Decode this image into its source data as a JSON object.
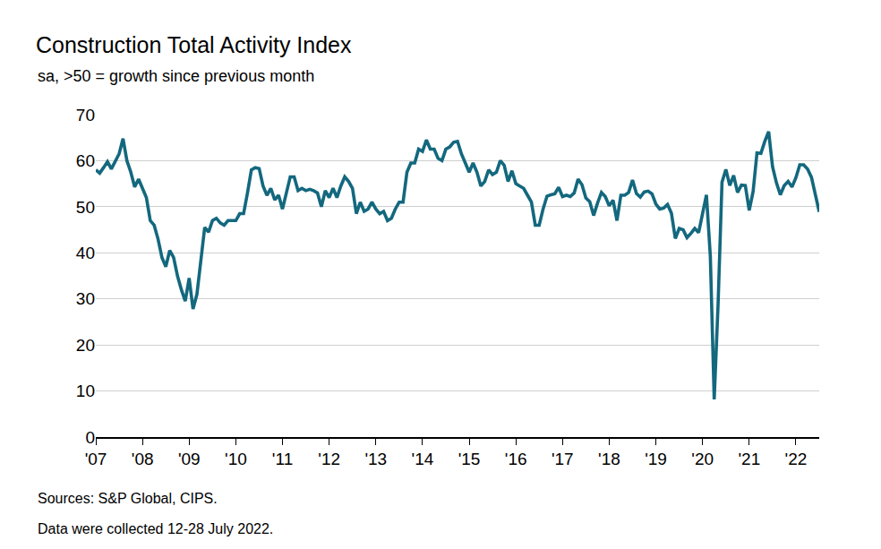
{
  "chart_data": {
    "type": "line",
    "title": "Construction Total Activity Index",
    "subtitle": "sa, >50 = growth since previous month",
    "annotations": [
      "Sources: S&P Global, CIPS.",
      "Data were collected 12-28 July 2022."
    ],
    "color": "#13687e",
    "grid": true,
    "ylim": [
      0,
      70
    ],
    "yticks": [
      0,
      10,
      20,
      30,
      40,
      50,
      60,
      70
    ],
    "categories": [
      "'07",
      null,
      null,
      null,
      null,
      null,
      null,
      null,
      null,
      null,
      null,
      null,
      "'08",
      null,
      null,
      null,
      null,
      null,
      null,
      null,
      null,
      null,
      null,
      null,
      "'09",
      null,
      null,
      null,
      null,
      null,
      null,
      null,
      null,
      null,
      null,
      null,
      "'10",
      null,
      null,
      null,
      null,
      null,
      null,
      null,
      null,
      null,
      null,
      null,
      "'11",
      null,
      null,
      null,
      null,
      null,
      null,
      null,
      null,
      null,
      null,
      null,
      "'12",
      null,
      null,
      null,
      null,
      null,
      null,
      null,
      null,
      null,
      null,
      null,
      "'13",
      null,
      null,
      null,
      null,
      null,
      null,
      null,
      null,
      null,
      null,
      null,
      "'14",
      null,
      null,
      null,
      null,
      null,
      null,
      null,
      null,
      null,
      null,
      null,
      "'15",
      null,
      null,
      null,
      null,
      null,
      null,
      null,
      null,
      null,
      null,
      null,
      "'16",
      null,
      null,
      null,
      null,
      null,
      null,
      null,
      null,
      null,
      null,
      null,
      "'17",
      null,
      null,
      null,
      null,
      null,
      null,
      null,
      null,
      null,
      null,
      null,
      "'18",
      null,
      null,
      null,
      null,
      null,
      null,
      null,
      null,
      null,
      null,
      null,
      "'19",
      null,
      null,
      null,
      null,
      null,
      null,
      null,
      null,
      null,
      null,
      null,
      "'20",
      null,
      null,
      null,
      null,
      null,
      null,
      null,
      null,
      null,
      null,
      null,
      "'21",
      null,
      null,
      null,
      null,
      null,
      null,
      null,
      null,
      null,
      null,
      null,
      "'22",
      null,
      null,
      null,
      null,
      null,
      null
    ],
    "values": [
      58,
      57.3,
      58.5,
      59.8,
      58.2,
      60,
      61.5,
      64.8,
      60,
      57.5,
      54.3,
      56,
      54,
      52,
      47,
      46,
      43,
      39,
      37,
      40.5,
      39,
      35,
      32,
      29.5,
      34.5,
      27.8,
      31,
      38,
      45.5,
      44.5,
      47,
      47.5,
      46.5,
      46,
      47,
      47,
      47,
      48.5,
      48.5,
      53,
      58,
      58.5,
      58.3,
      54.5,
      52.5,
      54,
      51.5,
      52.5,
      49.5,
      53,
      56.5,
      56.5,
      53.5,
      54,
      53.5,
      53.8,
      53.5,
      53,
      50,
      53.5,
      52,
      54,
      52,
      54.5,
      56.5,
      55.5,
      54,
      48.5,
      51,
      49,
      49.5,
      51,
      49.5,
      48.5,
      49,
      47,
      47.5,
      49.5,
      51,
      51,
      57.5,
      59.5,
      59.5,
      62.5,
      62,
      64.5,
      62.5,
      62.5,
      60.5,
      60,
      62.5,
      63,
      64,
      64.2,
      61.5,
      59.5,
      57.5,
      59.5,
      57.5,
      54.5,
      55.5,
      58,
      57,
      57.5,
      60,
      59,
      55.5,
      57.8,
      55,
      54.5,
      54,
      52.5,
      51,
      46,
      46,
      49.5,
      52.3,
      52.6,
      52.8,
      54.2,
      52.2,
      52.5,
      52.2,
      53,
      56,
      54.8,
      51.9,
      51.1,
      48.1,
      50.8,
      53.1,
      52.2,
      50.2,
      51.4,
      47,
      52.5,
      52.5,
      53.1,
      55.8,
      52.9,
      52.1,
      53.2,
      53.4,
      52.8,
      50.6,
      49.5,
      49.7,
      50.5,
      48.6,
      43.1,
      45.3,
      45,
      43.3,
      44.2,
      45.3,
      44.4,
      48.4,
      52.6,
      39.3,
      8.2,
      28.9,
      55.3,
      58.1,
      54.6,
      56.8,
      53.1,
      54.7,
      54.6,
      49.2,
      53.3,
      61.7,
      61.6,
      64.2,
      66.3,
      58.7,
      55.2,
      52.6,
      54.6,
      55.5,
      54.3,
      56.3,
      59.1,
      59.1,
      58.2,
      56.4,
      52.6,
      48.9
    ]
  }
}
